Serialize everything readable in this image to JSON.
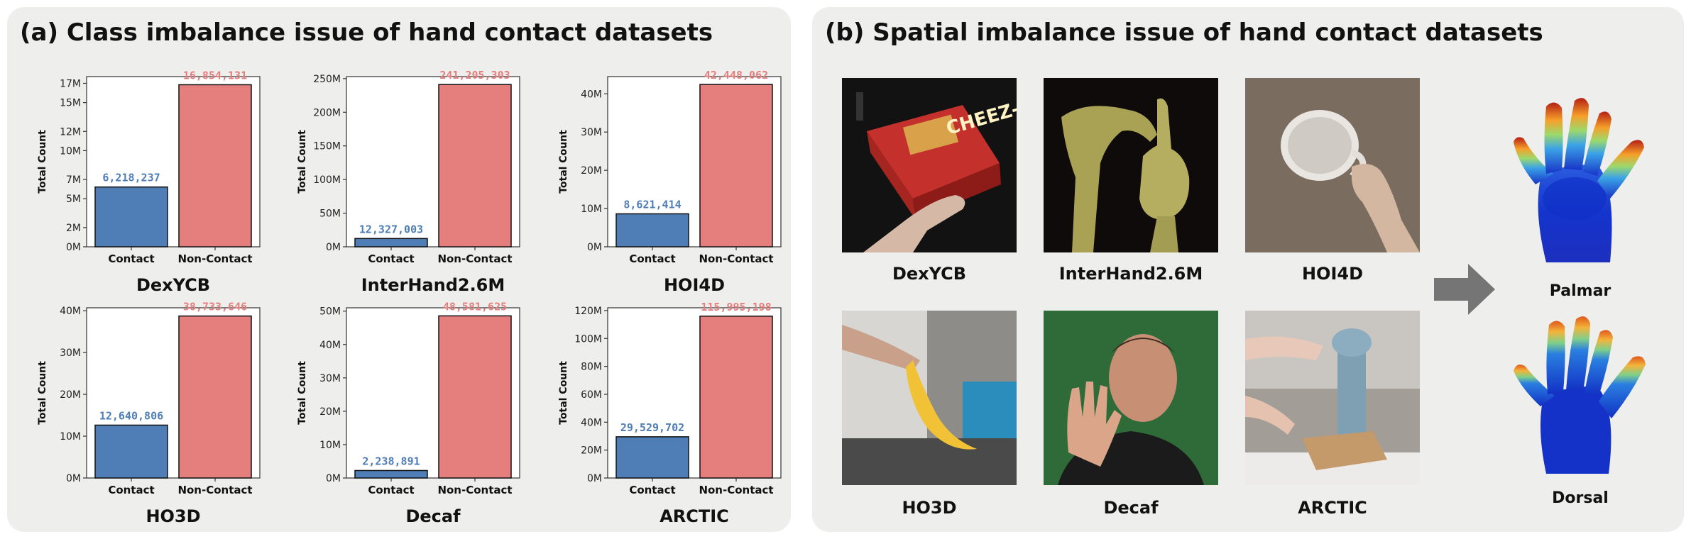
{
  "panel_a": {
    "title": "(a) Class imbalance issue of hand contact datasets"
  },
  "panel_b": {
    "title": "(b) Spatial imbalance issue of hand contact datasets",
    "photos": [
      {
        "label": "DexYCB"
      },
      {
        "label": "InterHand2.6M"
      },
      {
        "label": "HOI4D"
      },
      {
        "label": "HO3D"
      },
      {
        "label": "Decaf"
      },
      {
        "label": "ARCTIC"
      }
    ],
    "arrow_icon": "right-arrow-icon",
    "hand_views": [
      {
        "label": "Palmar"
      },
      {
        "label": "Dorsal"
      }
    ]
  },
  "colors": {
    "contact": "#4f7db6",
    "non_contact": "#e47f7e",
    "contact_label": "#4f7db6",
    "non_contact_label": "#e47f7e"
  },
  "chart_data": [
    {
      "type": "bar",
      "dataset": "DexYCB",
      "categories": [
        "Contact",
        "Non-Contact"
      ],
      "values": [
        6218237,
        16854131
      ],
      "value_labels": [
        "6,218,237",
        "16,854,131"
      ],
      "ylabel": "Total Count",
      "ylim": [
        0,
        17700000
      ],
      "yticks": [
        0,
        2000000,
        5000000,
        7000000,
        10000000,
        12000000,
        15000000,
        17000000
      ],
      "ytick_labels": [
        "0M",
        "2M",
        "5M",
        "7M",
        "10M",
        "12M",
        "15M",
        "17M"
      ],
      "xlabel": "DexYCB"
    },
    {
      "type": "bar",
      "dataset": "InterHand2.6M",
      "categories": [
        "Contact",
        "Non-Contact"
      ],
      "values": [
        12327003,
        241205303
      ],
      "value_labels": [
        "12,327,003",
        "241,205,303"
      ],
      "ylabel": "Total Count",
      "ylim": [
        0,
        253000000
      ],
      "yticks": [
        0,
        50000000,
        100000000,
        150000000,
        200000000,
        250000000
      ],
      "ytick_labels": [
        "0M",
        "50M",
        "100M",
        "150M",
        "200M",
        "250M"
      ],
      "xlabel": "InterHand2.6M"
    },
    {
      "type": "bar",
      "dataset": "HOI4D",
      "categories": [
        "Contact",
        "Non-Contact"
      ],
      "values": [
        8621414,
        42448062
      ],
      "value_labels": [
        "8,621,414",
        "42,448,062"
      ],
      "ylabel": "Total Count",
      "ylim": [
        0,
        44500000
      ],
      "yticks": [
        0,
        10000000,
        20000000,
        30000000,
        40000000
      ],
      "ytick_labels": [
        "0M",
        "10M",
        "20M",
        "30M",
        "40M"
      ],
      "xlabel": "HOI4D"
    },
    {
      "type": "bar",
      "dataset": "HO3D",
      "categories": [
        "Contact",
        "Non-Contact"
      ],
      "values": [
        12640806,
        38733646
      ],
      "value_labels": [
        "12,640,806",
        "38,733,646"
      ],
      "ylabel": "Total Count",
      "ylim": [
        0,
        40700000
      ],
      "yticks": [
        0,
        10000000,
        20000000,
        30000000,
        40000000
      ],
      "ytick_labels": [
        "0M",
        "10M",
        "20M",
        "30M",
        "40M"
      ],
      "xlabel": "HO3D"
    },
    {
      "type": "bar",
      "dataset": "Decaf",
      "categories": [
        "Contact",
        "Non-Contact"
      ],
      "values": [
        2238891,
        48581625
      ],
      "value_labels": [
        "2,238,891",
        "48,581,625"
      ],
      "ylabel": "Total Count",
      "ylim": [
        0,
        51000000
      ],
      "yticks": [
        0,
        10000000,
        20000000,
        30000000,
        40000000,
        50000000
      ],
      "ytick_labels": [
        "0M",
        "10M",
        "20M",
        "30M",
        "40M",
        "50M"
      ],
      "xlabel": "Decaf"
    },
    {
      "type": "bar",
      "dataset": "ARCTIC",
      "categories": [
        "Contact",
        "Non-Contact"
      ],
      "values": [
        29529702,
        115995198
      ],
      "value_labels": [
        "29,529,702",
        "115,995,198"
      ],
      "ylabel": "Total Count",
      "ylim": [
        0,
        122000000
      ],
      "yticks": [
        0,
        20000000,
        40000000,
        60000000,
        80000000,
        100000000,
        120000000
      ],
      "ytick_labels": [
        "0M",
        "20M",
        "40M",
        "60M",
        "80M",
        "100M",
        "120M"
      ],
      "xlabel": "ARCTIC"
    }
  ]
}
